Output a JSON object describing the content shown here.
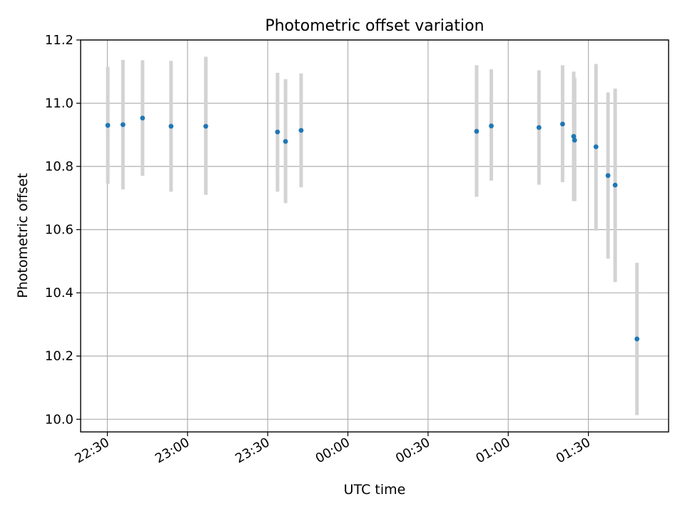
{
  "chart_data": {
    "type": "scatter",
    "title": "Photometric offset variation",
    "xlabel": "UTC time",
    "ylabel": "Photometric offset",
    "x_axis_type": "time",
    "xlim": [
      "22:20",
      "02:00"
    ],
    "ylim": [
      9.96,
      11.2
    ],
    "grid": true,
    "x_ticks": [
      "22:30",
      "23:00",
      "23:30",
      "00:00",
      "00:30",
      "01:00",
      "01:30"
    ],
    "y_ticks": [
      "10.0",
      "10.2",
      "10.4",
      "10.6",
      "10.8",
      "11.0",
      "11.2"
    ],
    "y_tick_values": [
      10.0,
      10.2,
      10.4,
      10.6,
      10.8,
      11.0,
      11.2
    ],
    "points_color": "#1f77b4",
    "errorbar_color": "#d3d3d3",
    "points": [
      {
        "t": "22:30:10",
        "y": 10.93,
        "ylo": 10.745,
        "yhi": 11.115
      },
      {
        "t": "22:35:50",
        "y": 10.932,
        "ylo": 10.727,
        "yhi": 11.137
      },
      {
        "t": "22:43:10",
        "y": 10.953,
        "ylo": 10.77,
        "yhi": 11.136
      },
      {
        "t": "22:53:50",
        "y": 10.927,
        "ylo": 10.72,
        "yhi": 11.134
      },
      {
        "t": "23:06:50",
        "y": 10.927,
        "ylo": 10.71,
        "yhi": 11.147
      },
      {
        "t": "23:33:40",
        "y": 10.909,
        "ylo": 10.72,
        "yhi": 11.096
      },
      {
        "t": "23:36:40",
        "y": 10.879,
        "ylo": 10.684,
        "yhi": 11.076
      },
      {
        "t": "23:42:30",
        "y": 10.914,
        "ylo": 10.734,
        "yhi": 11.094
      },
      {
        "t": "00:48:10",
        "y": 10.911,
        "ylo": 10.704,
        "yhi": 11.12
      },
      {
        "t": "00:53:40",
        "y": 10.928,
        "ylo": 10.755,
        "yhi": 11.107
      },
      {
        "t": "01:11:30",
        "y": 10.923,
        "ylo": 10.742,
        "yhi": 11.104
      },
      {
        "t": "01:20:20",
        "y": 10.934,
        "ylo": 10.75,
        "yhi": 11.12
      },
      {
        "t": "01:24:30",
        "y": 10.895,
        "ylo": 10.69,
        "yhi": 11.1
      },
      {
        "t": "01:24:50",
        "y": 10.883,
        "ylo": 10.69,
        "yhi": 11.08
      },
      {
        "t": "01:32:50",
        "y": 10.862,
        "ylo": 10.597,
        "yhi": 11.124
      },
      {
        "t": "01:37:20",
        "y": 10.771,
        "ylo": 10.508,
        "yhi": 11.034
      },
      {
        "t": "01:40:00",
        "y": 10.741,
        "ylo": 10.434,
        "yhi": 11.046
      },
      {
        "t": "01:48:10",
        "y": 10.254,
        "ylo": 10.013,
        "yhi": 10.495
      }
    ]
  }
}
